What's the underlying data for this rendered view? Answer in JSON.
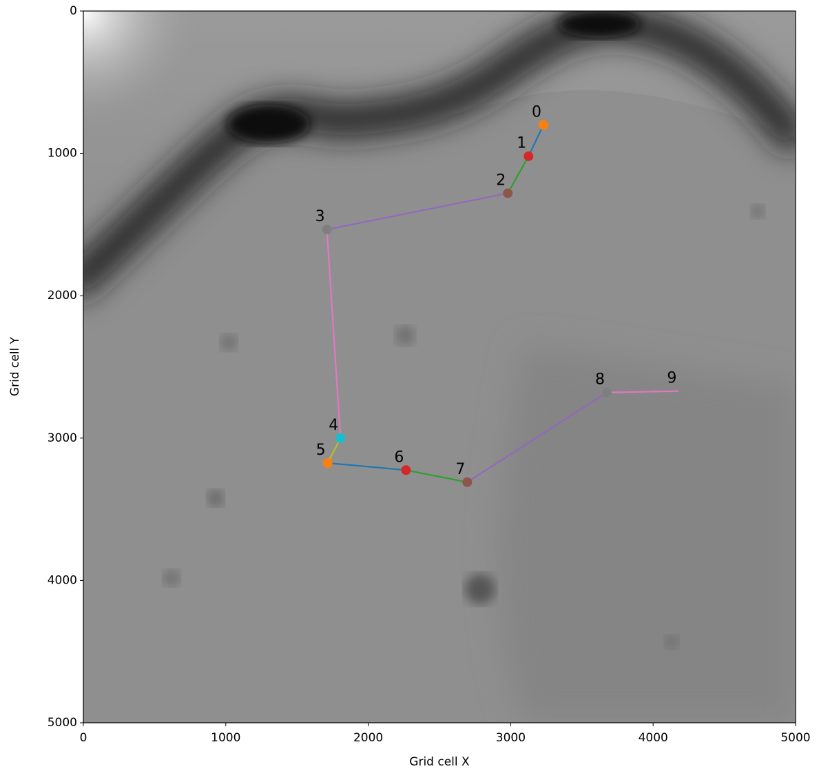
{
  "chart_data": {
    "type": "path",
    "x_label": "Grid cell X",
    "y_label": "Grid cell Y",
    "point_labels": [
      "0",
      "1",
      "2",
      "3",
      "4",
      "5",
      "6",
      "7",
      "8",
      "9"
    ],
    "x": [
      3230,
      3125,
      2980,
      1710,
      1805,
      1715,
      2265,
      2695,
      3675,
      4180
    ],
    "y": [
      800,
      1020,
      1280,
      1535,
      3000,
      3175,
      3225,
      3310,
      2680,
      2670
    ],
    "segment_colors": [
      "#1f77b4",
      "#2ca02c",
      "#9467bd",
      "#e377c2",
      "#bcbd22",
      "#1f77b4",
      "#2ca02c",
      "#9467bd",
      "#e377c2"
    ],
    "marker_colors": [
      "#ff7f0e",
      "#d62728",
      "#8c564b",
      "#7f7f7f",
      "#17becf",
      "#ff7f0e",
      "#d62728",
      "#8c564b",
      "#7f7f7f"
    ],
    "xlim": [
      0,
      5000
    ],
    "ylim": [
      5000,
      0
    ],
    "xticks": [
      0,
      1000,
      2000,
      3000,
      4000,
      5000
    ],
    "yticks": [
      0,
      1000,
      2000,
      3000,
      4000,
      5000
    ]
  }
}
